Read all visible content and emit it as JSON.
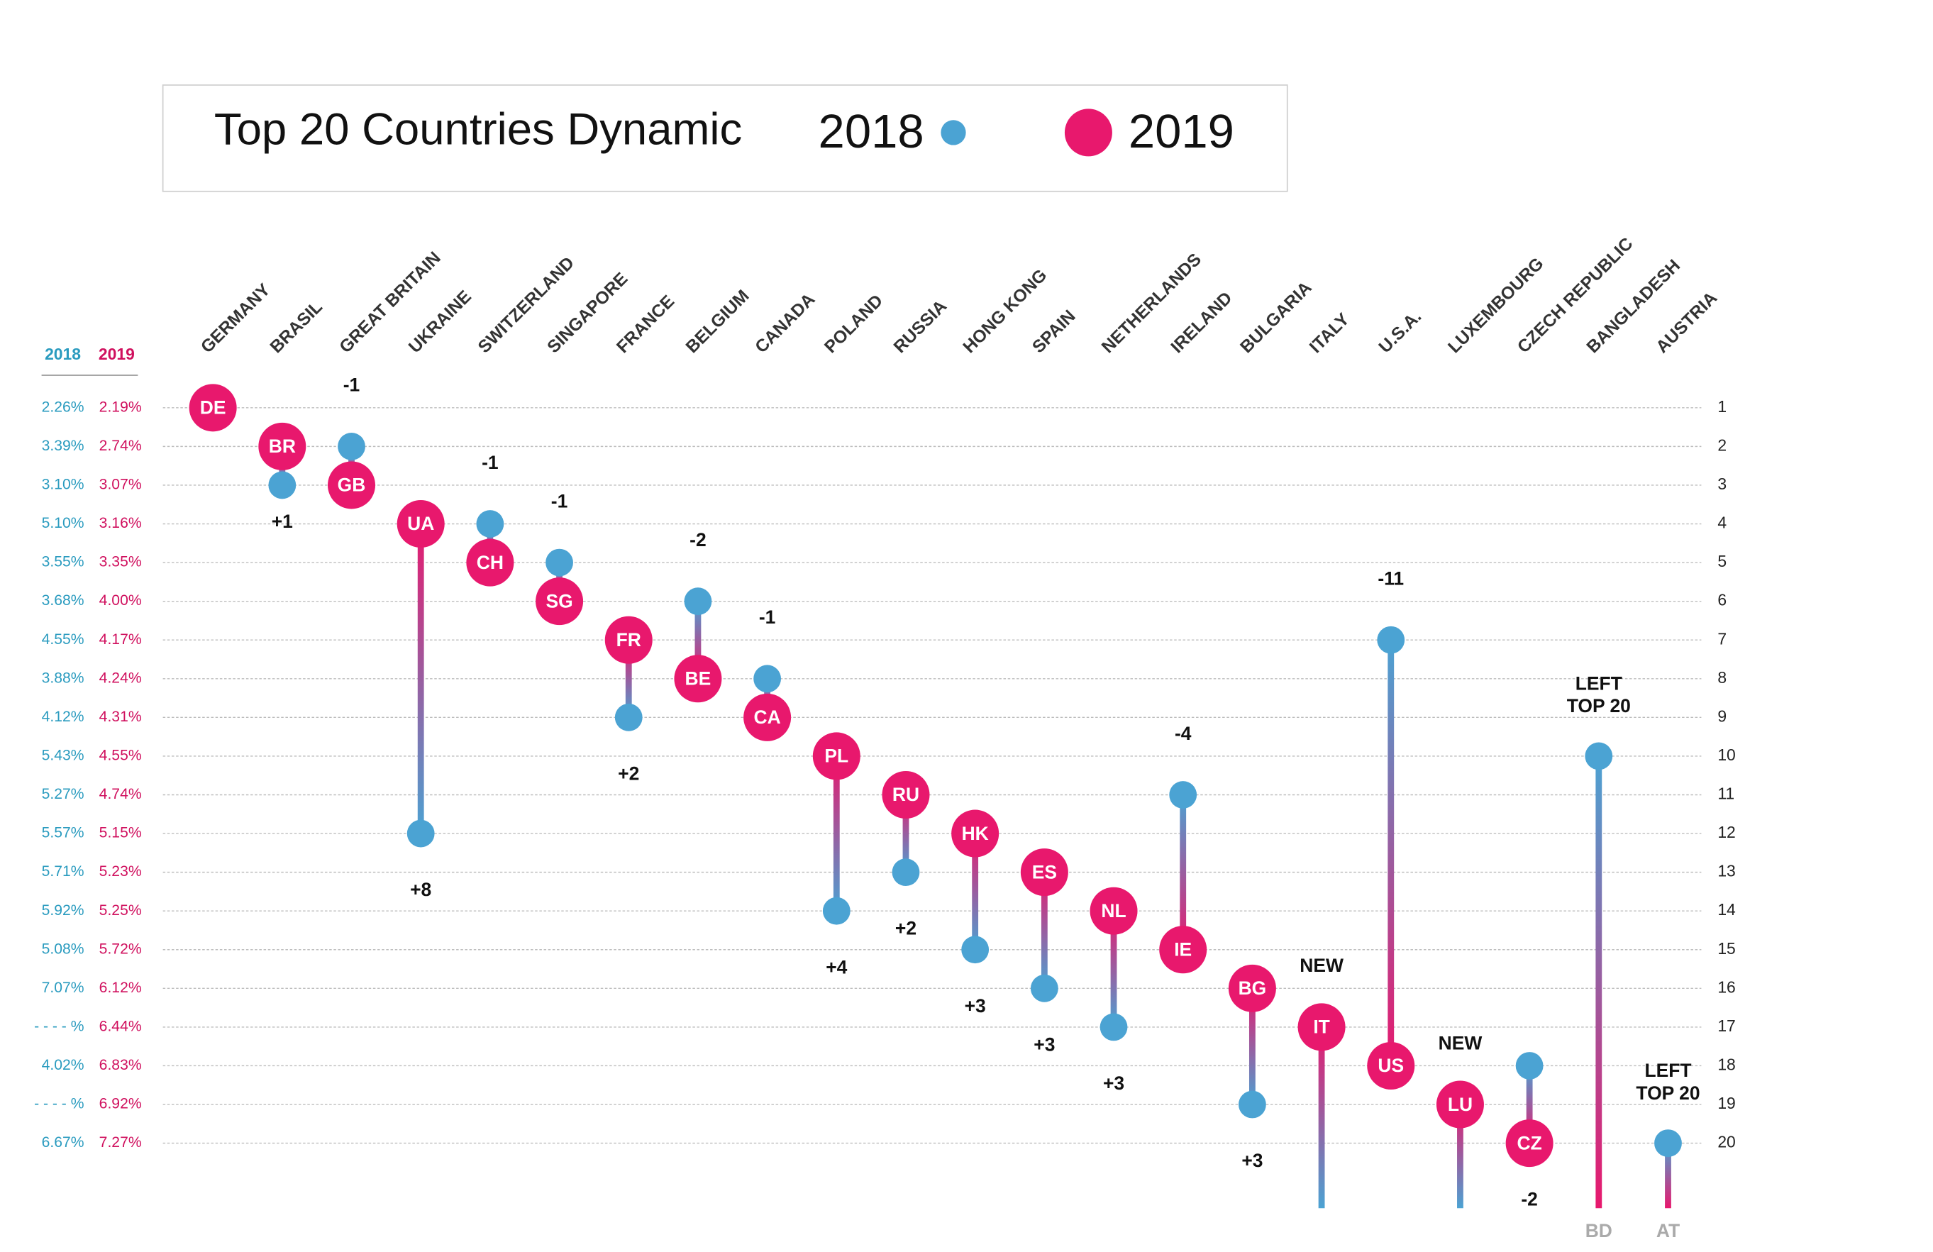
{
  "chart_data": {
    "type": "dumbbell",
    "title": "Top 20 Countries Dynamic",
    "categories": [
      "GERMANY",
      "BRASIL",
      "GREAT BRITAIN",
      "UKRAINE",
      "SWITZERLAND",
      "SINGAPORE",
      "FRANCE",
      "BELGIUM",
      "CANADA",
      "POLAND",
      "RUSSIA",
      "HONG KONG",
      "SPAIN",
      "NETHERLANDS",
      "IRELAND",
      "BULGARIA",
      "ITALY",
      "U.S.A.",
      "LUXEMBOURG",
      "CZECH REPUBLIC",
      "BANGLADESH",
      "AUSTRIA"
    ],
    "codes": [
      "DE",
      "BR",
      "GB",
      "UA",
      "CH",
      "SG",
      "FR",
      "BE",
      "CA",
      "PL",
      "RU",
      "HK",
      "ES",
      "NL",
      "IE",
      "BG",
      "IT",
      "US",
      "LU",
      "CZ",
      "BD",
      "AT"
    ],
    "series": [
      {
        "name": "2018",
        "color": "#4ba3d3",
        "values": [
          1,
          3,
          2,
          12,
          4,
          5,
          9,
          6,
          8,
          14,
          13,
          15,
          16,
          17,
          11,
          19,
          null,
          7,
          null,
          18,
          10,
          20
        ]
      },
      {
        "name": "2019",
        "color": "#e8186d",
        "values": [
          1,
          2,
          3,
          4,
          5,
          6,
          7,
          8,
          9,
          10,
          11,
          12,
          13,
          14,
          15,
          16,
          17,
          18,
          19,
          20,
          null,
          null
        ]
      }
    ],
    "changes": [
      null,
      "+1",
      "-1",
      "+8",
      "-1",
      "-1",
      "+2",
      "-2",
      "-1",
      "+4",
      "+2",
      "+3",
      "+3",
      "+3",
      "-4",
      "+3",
      "NEW",
      "-11",
      "NEW",
      "-2",
      "LEFT\nTOP 20",
      "LEFT\nTOP 20"
    ],
    "ylim": [
      1,
      20
    ],
    "yticks": [
      1,
      2,
      3,
      4,
      5,
      6,
      7,
      8,
      9,
      10,
      11,
      12,
      13,
      14,
      15,
      16,
      17,
      18,
      19,
      20
    ],
    "y_inverted": true,
    "grid": true
  },
  "share_table": {
    "2018": [
      "2.26%",
      "3.39%",
      "3.10%",
      "5.10%",
      "3.55%",
      "3.68%",
      "4.55%",
      "3.88%",
      "4.12%",
      "5.43%",
      "5.27%",
      "5.57%",
      "5.71%",
      "5.92%",
      "5.08%",
      "7.07%",
      "- - - - %",
      "4.02%",
      "- - - - %",
      "6.67%"
    ],
    "2019": [
      "2.19%",
      "2.74%",
      "3.07%",
      "3.16%",
      "3.35%",
      "4.00%",
      "4.17%",
      "4.24%",
      "4.31%",
      "4.55%",
      "4.74%",
      "5.15%",
      "5.23%",
      "5.25%",
      "5.72%",
      "6.12%",
      "6.44%",
      "6.83%",
      "6.92%",
      "7.27%"
    ]
  }
}
